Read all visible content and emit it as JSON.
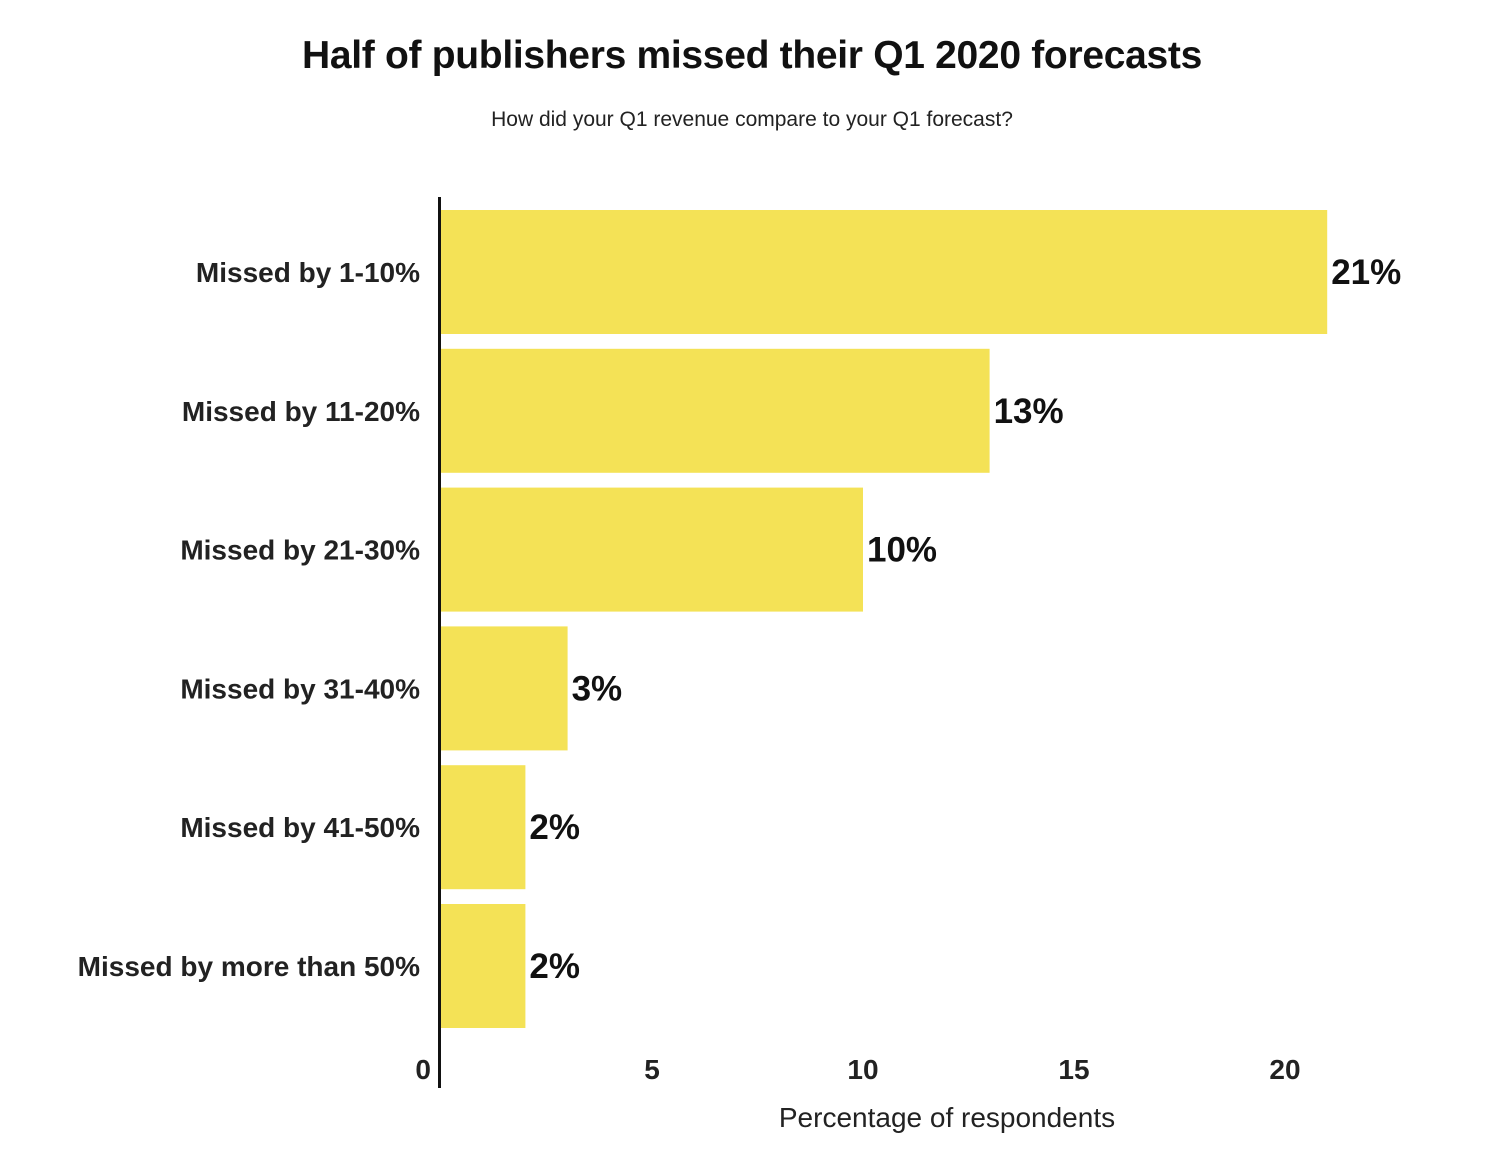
{
  "chart_data": {
    "type": "bar",
    "orientation": "horizontal",
    "title": "Half of publishers missed their Q1 2020 forecasts",
    "subtitle": "How did your Q1 revenue compare to your Q1 forecast?",
    "xlabel": "Percentage of respondents",
    "ylabel": "",
    "categories": [
      "Missed by 1-10%",
      "Missed by 11-20%",
      "Missed by 21-30%",
      "Missed by 31-40%",
      "Missed by 41-50%",
      "Missed by more than 50%"
    ],
    "values": [
      21,
      13,
      10,
      3,
      2,
      2
    ],
    "data_labels": [
      "21%",
      "13%",
      "10%",
      "3%",
      "2%",
      "2%"
    ],
    "xticks": [
      0,
      5,
      10,
      15,
      20
    ],
    "xtick_labels": [
      "0",
      "5",
      "10",
      "15",
      "20"
    ],
    "xlim": [
      0,
      23.5
    ],
    "grid": false,
    "bar_color": "#F4E256",
    "axis_color": "#111111"
  }
}
